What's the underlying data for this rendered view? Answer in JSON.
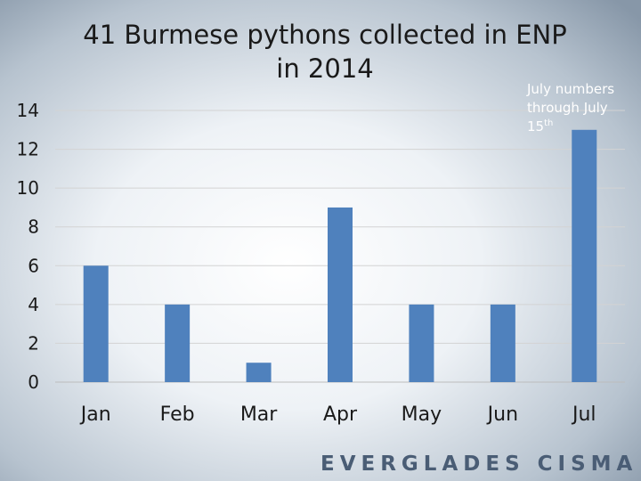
{
  "chart_data": {
    "type": "bar",
    "title_lines": [
      "41 Burmese pythons collected in ENP",
      "in 2014"
    ],
    "categories": [
      "Jan",
      "Feb",
      "Mar",
      "Apr",
      "May",
      "Jun",
      "Jul"
    ],
    "values": [
      6,
      4,
      1,
      9,
      4,
      4,
      13
    ],
    "ylim": [
      0,
      14
    ],
    "yticks": [
      0,
      2,
      4,
      6,
      8,
      10,
      12,
      14
    ],
    "grid": true,
    "bar_color": "#4f81bd",
    "annotation": {
      "lines": [
        "July numbers",
        "through July"
      ],
      "last_line_base": "15",
      "last_line_sup": "th"
    }
  },
  "logo": "EVERGLADES CISMA",
  "colors": {
    "bar": "#4f81bd",
    "logo": "#4a5d75",
    "annotation": "#ffffff"
  }
}
